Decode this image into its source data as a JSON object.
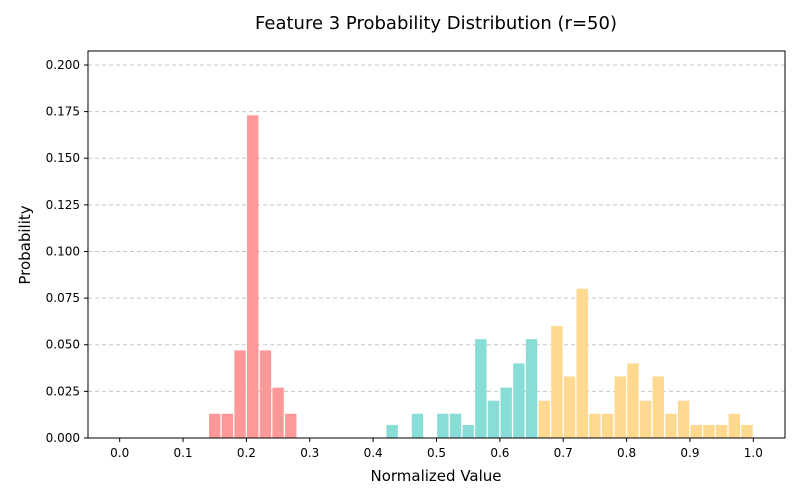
{
  "chart_data": {
    "type": "bar",
    "title": "Feature 3 Probability Distribution (r=50)",
    "xlabel": "Normalized Value",
    "ylabel": "Probability",
    "xlim": [
      -0.05,
      1.05
    ],
    "ylim": [
      0,
      0.2075
    ],
    "bin_width": 0.02,
    "grid": "horizontal dashed",
    "x_ticks": [
      {
        "value": 0.0,
        "label": "0.0"
      },
      {
        "value": 0.1,
        "label": "0.1"
      },
      {
        "value": 0.2,
        "label": "0.2"
      },
      {
        "value": 0.3,
        "label": "0.3"
      },
      {
        "value": 0.4,
        "label": "0.4"
      },
      {
        "value": 0.5,
        "label": "0.5"
      },
      {
        "value": 0.6,
        "label": "0.6"
      },
      {
        "value": 0.7,
        "label": "0.7"
      },
      {
        "value": 0.8,
        "label": "0.8"
      },
      {
        "value": 0.9,
        "label": "0.9"
      },
      {
        "value": 1.0,
        "label": "1.0"
      }
    ],
    "y_ticks": [
      {
        "value": 0.0,
        "label": "0.000"
      },
      {
        "value": 0.025,
        "label": "0.025"
      },
      {
        "value": 0.05,
        "label": "0.050"
      },
      {
        "value": 0.075,
        "label": "0.075"
      },
      {
        "value": 0.1,
        "label": "0.100"
      },
      {
        "value": 0.125,
        "label": "0.125"
      },
      {
        "value": 0.15,
        "label": "0.150"
      },
      {
        "value": 0.175,
        "label": "0.175"
      },
      {
        "value": 0.2,
        "label": "0.200"
      }
    ],
    "series": [
      {
        "color": "#ff9999",
        "points": [
          {
            "x": 0.15,
            "y": 0.013
          },
          {
            "x": 0.17,
            "y": 0.013
          },
          {
            "x": 0.19,
            "y": 0.047
          },
          {
            "x": 0.21,
            "y": 0.173
          },
          {
            "x": 0.23,
            "y": 0.047
          },
          {
            "x": 0.25,
            "y": 0.027
          },
          {
            "x": 0.27,
            "y": 0.013
          }
        ]
      },
      {
        "color": "#88ddd6",
        "points": [
          {
            "x": 0.43,
            "y": 0.007
          },
          {
            "x": 0.47,
            "y": 0.013
          },
          {
            "x": 0.51,
            "y": 0.013
          },
          {
            "x": 0.53,
            "y": 0.013
          },
          {
            "x": 0.55,
            "y": 0.007
          },
          {
            "x": 0.57,
            "y": 0.053
          },
          {
            "x": 0.59,
            "y": 0.02
          },
          {
            "x": 0.61,
            "y": 0.027
          },
          {
            "x": 0.63,
            "y": 0.04
          },
          {
            "x": 0.65,
            "y": 0.053
          }
        ]
      },
      {
        "color": "#ffd98f",
        "points": [
          {
            "x": 0.67,
            "y": 0.02
          },
          {
            "x": 0.69,
            "y": 0.06
          },
          {
            "x": 0.71,
            "y": 0.033
          },
          {
            "x": 0.73,
            "y": 0.08
          },
          {
            "x": 0.75,
            "y": 0.013
          },
          {
            "x": 0.77,
            "y": 0.013
          },
          {
            "x": 0.79,
            "y": 0.033
          },
          {
            "x": 0.81,
            "y": 0.04
          },
          {
            "x": 0.83,
            "y": 0.02
          },
          {
            "x": 0.85,
            "y": 0.033
          },
          {
            "x": 0.87,
            "y": 0.013
          },
          {
            "x": 0.89,
            "y": 0.02
          },
          {
            "x": 0.91,
            "y": 0.007
          },
          {
            "x": 0.93,
            "y": 0.007
          },
          {
            "x": 0.95,
            "y": 0.007
          },
          {
            "x": 0.97,
            "y": 0.013
          },
          {
            "x": 0.99,
            "y": 0.007
          }
        ]
      }
    ]
  }
}
